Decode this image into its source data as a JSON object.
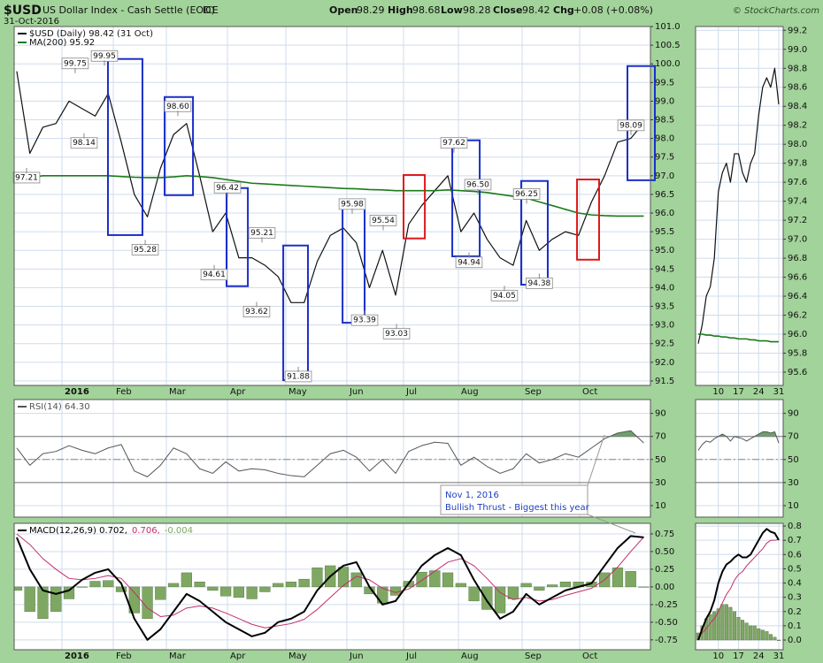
{
  "header": {
    "symbol": "$USD",
    "name": "US Dollar Index - Cash Settle (EOD)",
    "exchange": "ICE",
    "date": "31-Oct-2016",
    "open_label": "Open",
    "open": "98.29",
    "high_label": "High",
    "high": "98.68",
    "low_label": "Low",
    "low": "98.28",
    "close_label": "Close",
    "close": "98.42",
    "chg_label": "Chg",
    "chg": "+0.08 (+0.08%)",
    "brand": "© StockCharts.com"
  },
  "callout": [
    "Nov 1, 2016",
    "Bullish Thrust - Biggest this year"
  ],
  "chart_data": [
    {
      "type": "line",
      "xlim": [
        -0.2,
        48.51
      ],
      "ylim": [
        91.38,
        101.0
      ],
      "grid": true,
      "legend": "top-left",
      "legend_layout": "column",
      "xticks": [
        {
          "value": 3.46,
          "label": "2016"
        },
        {
          "value": 7.39,
          "label": "Feb"
        },
        {
          "value": 11.45,
          "label": "Mar"
        },
        {
          "value": 16.13,
          "label": "Apr"
        },
        {
          "value": 20.6,
          "label": "May"
        },
        {
          "value": 25.27,
          "label": "Jun"
        },
        {
          "value": 29.61,
          "label": "Jul"
        },
        {
          "value": 33.81,
          "label": "Aug"
        },
        {
          "value": 38.69,
          "label": "Sep"
        },
        {
          "value": 43.09,
          "label": "Oct"
        }
      ],
      "yticks": [
        91.5,
        {
          "value": 92,
          "label": "92.0"
        },
        92.5,
        {
          "value": 93,
          "label": "93.0"
        },
        93.5,
        {
          "value": 94,
          "label": "94.0"
        },
        94.5,
        {
          "value": 95,
          "label": "95.0"
        },
        95.5,
        {
          "value": 96,
          "label": "96.0"
        },
        96.5,
        {
          "value": 97,
          "label": "97.0"
        },
        97.5,
        {
          "value": 98,
          "label": "98.0"
        },
        98.5,
        {
          "value": 99,
          "label": "99.0"
        },
        99.5,
        {
          "value": 100,
          "label": "100.0"
        },
        100.5,
        {
          "value": 101,
          "label": "101.0"
        }
      ],
      "series": [
        {
          "name": "$USD (Daily) 98.42 (31 Oct)",
          "color": "#111111",
          "values": [
            99.8,
            97.6,
            98.3,
            98.4,
            99.0,
            98.8,
            98.6,
            99.2,
            97.9,
            96.5,
            95.9,
            97.2,
            98.1,
            98.4,
            97.0,
            95.5,
            96.0,
            94.8,
            94.8,
            94.6,
            94.3,
            93.6,
            93.6,
            94.7,
            95.4,
            95.6,
            95.2,
            94.0,
            95.0,
            93.8,
            95.7,
            96.2,
            96.6,
            97.0,
            95.5,
            96.0,
            95.3,
            94.8,
            94.6,
            95.8,
            95.0,
            95.3,
            95.5,
            95.4,
            96.3,
            97.0,
            97.9,
            98.0,
            98.42
          ]
        },
        {
          "name": "MA(200) 95.92",
          "color": "#1b7a1b",
          "values": [
            96.9,
            96.95,
            97.0,
            97.0,
            97.0,
            97.0,
            97.0,
            97.0,
            96.98,
            96.96,
            96.95,
            96.95,
            96.97,
            97.0,
            96.98,
            96.95,
            96.9,
            96.85,
            96.8,
            96.78,
            96.76,
            96.74,
            96.72,
            96.7,
            96.68,
            96.66,
            96.65,
            96.63,
            96.62,
            96.6,
            96.6,
            96.6,
            96.6,
            96.62,
            96.6,
            96.58,
            96.55,
            96.5,
            96.45,
            96.4,
            96.3,
            96.2,
            96.1,
            96.0,
            95.95,
            95.93,
            95.92,
            95.92,
            95.92
          ]
        }
      ],
      "boxes": [
        {
          "x": [
            6.98,
            9.62
          ],
          "y": [
            95.41,
            100.13
          ],
          "color": "#1a2fc8"
        },
        {
          "x": [
            11.32,
            13.49
          ],
          "y": [
            96.48,
            99.11
          ],
          "color": "#1a2fc8"
        },
        {
          "x": [
            16.06,
            17.69
          ],
          "y": [
            94.04,
            96.67
          ],
          "color": "#1a2fc8"
        },
        {
          "x": [
            20.4,
            22.29
          ],
          "y": [
            91.52,
            95.13
          ],
          "color": "#1a2fc8"
        },
        {
          "x": [
            24.94,
            26.63
          ],
          "y": [
            93.06,
            96.31
          ],
          "color": "#1a2fc8"
        },
        {
          "x": [
            29.61,
            31.24
          ],
          "y": [
            95.32,
            97.02
          ],
          "color": "#e01818"
        },
        {
          "x": [
            33.34,
            35.44
          ],
          "y": [
            94.84,
            97.95
          ],
          "color": "#1a2fc8"
        },
        {
          "x": [
            38.62,
            40.65
          ],
          "y": [
            94.08,
            96.86
          ],
          "color": "#1a2fc8"
        },
        {
          "x": [
            42.89,
            44.58
          ],
          "y": [
            94.75,
            96.9
          ],
          "color": "#e01818"
        },
        {
          "x": [
            46.75,
            48.85
          ],
          "y": [
            96.88,
            99.94
          ],
          "color": "#1a2fc8"
        }
      ],
      "annotations": [
        {
          "x": 0.75,
          "value": 97.21,
          "label": "97.21",
          "position": "below"
        },
        {
          "x": 4.47,
          "value": 99.75,
          "label": "99.75",
          "position": "above"
        },
        {
          "x": 6.71,
          "value": 99.95,
          "label": "99.95",
          "position": "above"
        },
        {
          "x": 5.15,
          "value": 98.14,
          "label": "98.14",
          "position": "below"
        },
        {
          "x": 9.83,
          "value": 95.28,
          "label": "95.28",
          "position": "below"
        },
        {
          "x": 12.33,
          "value": 98.6,
          "label": "98.60",
          "position": "above"
        },
        {
          "x": 16.13,
          "value": 96.42,
          "label": "96.42",
          "position": "above"
        },
        {
          "x": 15.11,
          "value": 94.61,
          "label": "94.61",
          "position": "below"
        },
        {
          "x": 18.77,
          "value": 95.21,
          "label": "95.21",
          "position": "above"
        },
        {
          "x": 18.36,
          "value": 93.62,
          "label": "93.62",
          "position": "below"
        },
        {
          "x": 21.55,
          "value": 91.88,
          "label": "91.88",
          "position": "below"
        },
        {
          "x": 25.68,
          "value": 95.98,
          "label": "95.98",
          "position": "above"
        },
        {
          "x": 28.05,
          "value": 95.54,
          "label": "95.54",
          "position": "above"
        },
        {
          "x": 26.63,
          "value": 93.39,
          "label": "93.39",
          "position": "below"
        },
        {
          "x": 29.07,
          "value": 93.03,
          "label": "93.03",
          "position": "below"
        },
        {
          "x": 33.47,
          "value": 97.62,
          "label": "97.62",
          "position": "above"
        },
        {
          "x": 35.3,
          "value": 96.5,
          "label": "96.50",
          "position": "above"
        },
        {
          "x": 34.62,
          "value": 94.94,
          "label": "94.94",
          "position": "below"
        },
        {
          "x": 39.03,
          "value": 96.25,
          "label": "96.25",
          "position": "above"
        },
        {
          "x": 37.33,
          "value": 94.05,
          "label": "94.05",
          "position": "below"
        },
        {
          "x": 40.0,
          "value": 94.38,
          "label": "94.38",
          "position": "below"
        },
        {
          "x": 47.02,
          "value": 98.09,
          "label": "98.09",
          "position": "above"
        }
      ]
    },
    {
      "type": "line",
      "xlim": [
        -0.2,
        48.51
      ],
      "ylim": [
        0,
        102
      ],
      "grid": true,
      "legend": "top-left",
      "legend_layout": "row",
      "xtick_labels": false,
      "xticks": [
        3.46,
        7.39,
        11.45,
        16.13,
        20.6,
        25.27,
        29.61,
        33.81,
        38.69,
        43.09
      ],
      "yticks": [
        10,
        30,
        50,
        70,
        90
      ],
      "levels": [
        30,
        70
      ],
      "midline": 50,
      "fill_above": 70,
      "fill_color": "#6f9f6a",
      "series": [
        {
          "name": "RSI(14) 64.30",
          "color": "#555555",
          "values": [
            60,
            45,
            55,
            57,
            62,
            58,
            55,
            60,
            63,
            40,
            35,
            45,
            60,
            55,
            42,
            38,
            48,
            40,
            42,
            41,
            38,
            36,
            35,
            45,
            55,
            58,
            52,
            40,
            50,
            38,
            57,
            62,
            65,
            64,
            45,
            52,
            44,
            38,
            42,
            55,
            47,
            50,
            55,
            52,
            60,
            68,
            73,
            75,
            64.3
          ]
        }
      ]
    },
    {
      "type": "line",
      "xlim": [
        -0.2,
        48.51
      ],
      "ylim": [
        -0.89,
        0.9
      ],
      "grid": true,
      "legend": "top-left",
      "legend_layout": "row",
      "xticks": [
        {
          "value": 3.46,
          "label": "2016"
        },
        {
          "value": 7.39,
          "label": "Feb"
        },
        {
          "value": 11.45,
          "label": "Mar"
        },
        {
          "value": 16.13,
          "label": "Apr"
        },
        {
          "value": 20.6,
          "label": "May"
        },
        {
          "value": 25.27,
          "label": "Jun"
        },
        {
          "value": 29.61,
          "label": "Jul"
        },
        {
          "value": 33.81,
          "label": "Aug"
        },
        {
          "value": 38.69,
          "label": "Sep"
        },
        {
          "value": 43.09,
          "label": "Oct"
        }
      ],
      "yticks": [
        -0.75,
        {
          "value": -0.5,
          "label": "-0.50"
        },
        -0.25,
        {
          "value": 0,
          "label": "0.00"
        },
        0.25,
        {
          "value": 0.5,
          "label": "0.50"
        },
        0.75
      ],
      "series": [
        {
          "name": "-0.004",
          "type": "bar",
          "color": "#7ea862",
          "values": [
            -0.05,
            -0.35,
            -0.45,
            -0.35,
            -0.17,
            0.0,
            0.08,
            0.09,
            -0.07,
            -0.37,
            -0.45,
            -0.18,
            0.05,
            0.2,
            0.07,
            -0.05,
            -0.13,
            -0.15,
            -0.17,
            -0.07,
            0.05,
            0.07,
            0.11,
            0.27,
            0.3,
            0.28,
            0.2,
            -0.1,
            -0.23,
            -0.12,
            0.08,
            0.21,
            0.23,
            0.2,
            0.05,
            -0.2,
            -0.32,
            -0.37,
            -0.17,
            0.05,
            -0.05,
            0.03,
            0.07,
            0.07,
            0.07,
            0.2,
            0.27,
            0.22,
            -0.004
          ]
        },
        {
          "name": "0.706,",
          "color": "#c2306a",
          "values": [
            0.75,
            0.6,
            0.4,
            0.25,
            0.12,
            0.1,
            0.12,
            0.16,
            0.12,
            -0.08,
            -0.3,
            -0.42,
            -0.4,
            -0.3,
            -0.27,
            -0.3,
            -0.37,
            -0.45,
            -0.53,
            -0.58,
            -0.55,
            -0.52,
            -0.46,
            -0.32,
            -0.15,
            0.02,
            0.15,
            0.1,
            -0.02,
            -0.08,
            -0.03,
            0.09,
            0.22,
            0.35,
            0.4,
            0.3,
            0.12,
            -0.08,
            -0.18,
            -0.15,
            -0.2,
            -0.18,
            -0.12,
            -0.07,
            -0.02,
            0.1,
            0.28,
            0.5,
            0.706
          ]
        },
        {
          "name": "MACD(12,26,9) 0.702,",
          "color": "#000000",
          "values": [
            0.7,
            0.25,
            -0.05,
            -0.1,
            -0.05,
            0.1,
            0.2,
            0.25,
            0.05,
            -0.45,
            -0.75,
            -0.6,
            -0.35,
            -0.1,
            -0.2,
            -0.35,
            -0.5,
            -0.6,
            -0.7,
            -0.65,
            -0.5,
            -0.45,
            -0.35,
            -0.05,
            0.15,
            0.3,
            0.35,
            0.0,
            -0.25,
            -0.2,
            0.05,
            0.3,
            0.45,
            0.55,
            0.45,
            0.1,
            -0.2,
            -0.45,
            -0.35,
            -0.1,
            -0.25,
            -0.15,
            -0.05,
            0.0,
            0.05,
            0.3,
            0.55,
            0.72,
            0.702
          ]
        }
      ]
    },
    {
      "type": "line",
      "xlim": [
        -0.66,
        21.1
      ],
      "ylim": [
        95.46,
        99.24
      ],
      "grid": true,
      "xticks": [
        {
          "value": 5,
          "label": "10"
        },
        {
          "value": 10,
          "label": "17"
        },
        {
          "value": 15,
          "label": "24"
        },
        {
          "value": 20,
          "label": "31"
        }
      ],
      "yticks": [
        95.6,
        95.8,
        {
          "value": 96,
          "label": "96.0"
        },
        96.2,
        96.4,
        96.6,
        96.8,
        {
          "value": 97,
          "label": "97.0"
        },
        97.2,
        97.4,
        97.6,
        97.8,
        {
          "value": 98,
          "label": "98.0"
        },
        98.2,
        98.4,
        98.6,
        98.8,
        {
          "value": 99,
          "label": "99.0"
        },
        99.2
      ],
      "series": [
        {
          "color": "#111111",
          "values": [
            95.9,
            96.1,
            96.4,
            96.5,
            96.8,
            97.5,
            97.7,
            97.8,
            97.6,
            97.9,
            97.9,
            97.7,
            97.6,
            97.8,
            97.9,
            98.3,
            98.6,
            98.7,
            98.6,
            98.8,
            98.42
          ]
        },
        {
          "color": "#1b7a1b",
          "values": [
            96.0,
            96.0,
            95.99,
            95.99,
            95.98,
            95.98,
            95.97,
            95.97,
            95.96,
            95.96,
            95.95,
            95.95,
            95.95,
            95.94,
            95.94,
            95.93,
            95.93,
            95.93,
            95.92,
            95.92,
            95.92
          ]
        }
      ]
    },
    {
      "type": "line",
      "xlim": [
        -0.66,
        21.1
      ],
      "ylim": [
        0,
        102
      ],
      "grid": true,
      "xtick_labels": false,
      "xticks": [
        5,
        10,
        15,
        20
      ],
      "yticks": [
        10,
        30,
        50,
        70,
        90
      ],
      "levels": [
        30,
        70
      ],
      "midline": 50,
      "fill_above": 70,
      "fill_color": "#6f9f6a",
      "series": [
        {
          "color": "#555555",
          "values": [
            58,
            63,
            66,
            65,
            68,
            70,
            72,
            70,
            66,
            70,
            69,
            68,
            66,
            68,
            70,
            72,
            74,
            74,
            73,
            74,
            64.3
          ]
        }
      ]
    },
    {
      "type": "line",
      "xlim": [
        -0.66,
        21.1
      ],
      "ylim": [
        -0.068,
        0.819
      ],
      "grid": true,
      "xticks": [
        {
          "value": 5,
          "label": "10"
        },
        {
          "value": 10,
          "label": "17"
        },
        {
          "value": 15,
          "label": "24"
        },
        {
          "value": 20,
          "label": "31"
        }
      ],
      "yticks": [
        {
          "value": 0,
          "label": "0.0"
        },
        0.1,
        0.2,
        0.3,
        0.4,
        0.5,
        0.6,
        0.7,
        0.8
      ],
      "series": [
        {
          "type": "bar",
          "color": "#7ea862",
          "values": [
            0.05,
            0.1,
            0.15,
            0.18,
            0.2,
            0.22,
            0.25,
            0.25,
            0.23,
            0.2,
            0.16,
            0.14,
            0.12,
            0.1,
            0.1,
            0.08,
            0.07,
            0.06,
            0.04,
            0.02,
            -0.004
          ]
        },
        {
          "color": "#c2306a",
          "values": [
            0.02,
            0.05,
            0.08,
            0.12,
            0.15,
            0.2,
            0.26,
            0.32,
            0.36,
            0.42,
            0.46,
            0.48,
            0.52,
            0.55,
            0.58,
            0.61,
            0.64,
            0.68,
            0.7,
            0.7,
            0.706
          ]
        },
        {
          "color": "#000000",
          "values": [
            0.0,
            0.08,
            0.15,
            0.2,
            0.28,
            0.4,
            0.48,
            0.53,
            0.55,
            0.58,
            0.6,
            0.58,
            0.58,
            0.6,
            0.65,
            0.7,
            0.75,
            0.78,
            0.76,
            0.75,
            0.702
          ]
        }
      ]
    }
  ]
}
